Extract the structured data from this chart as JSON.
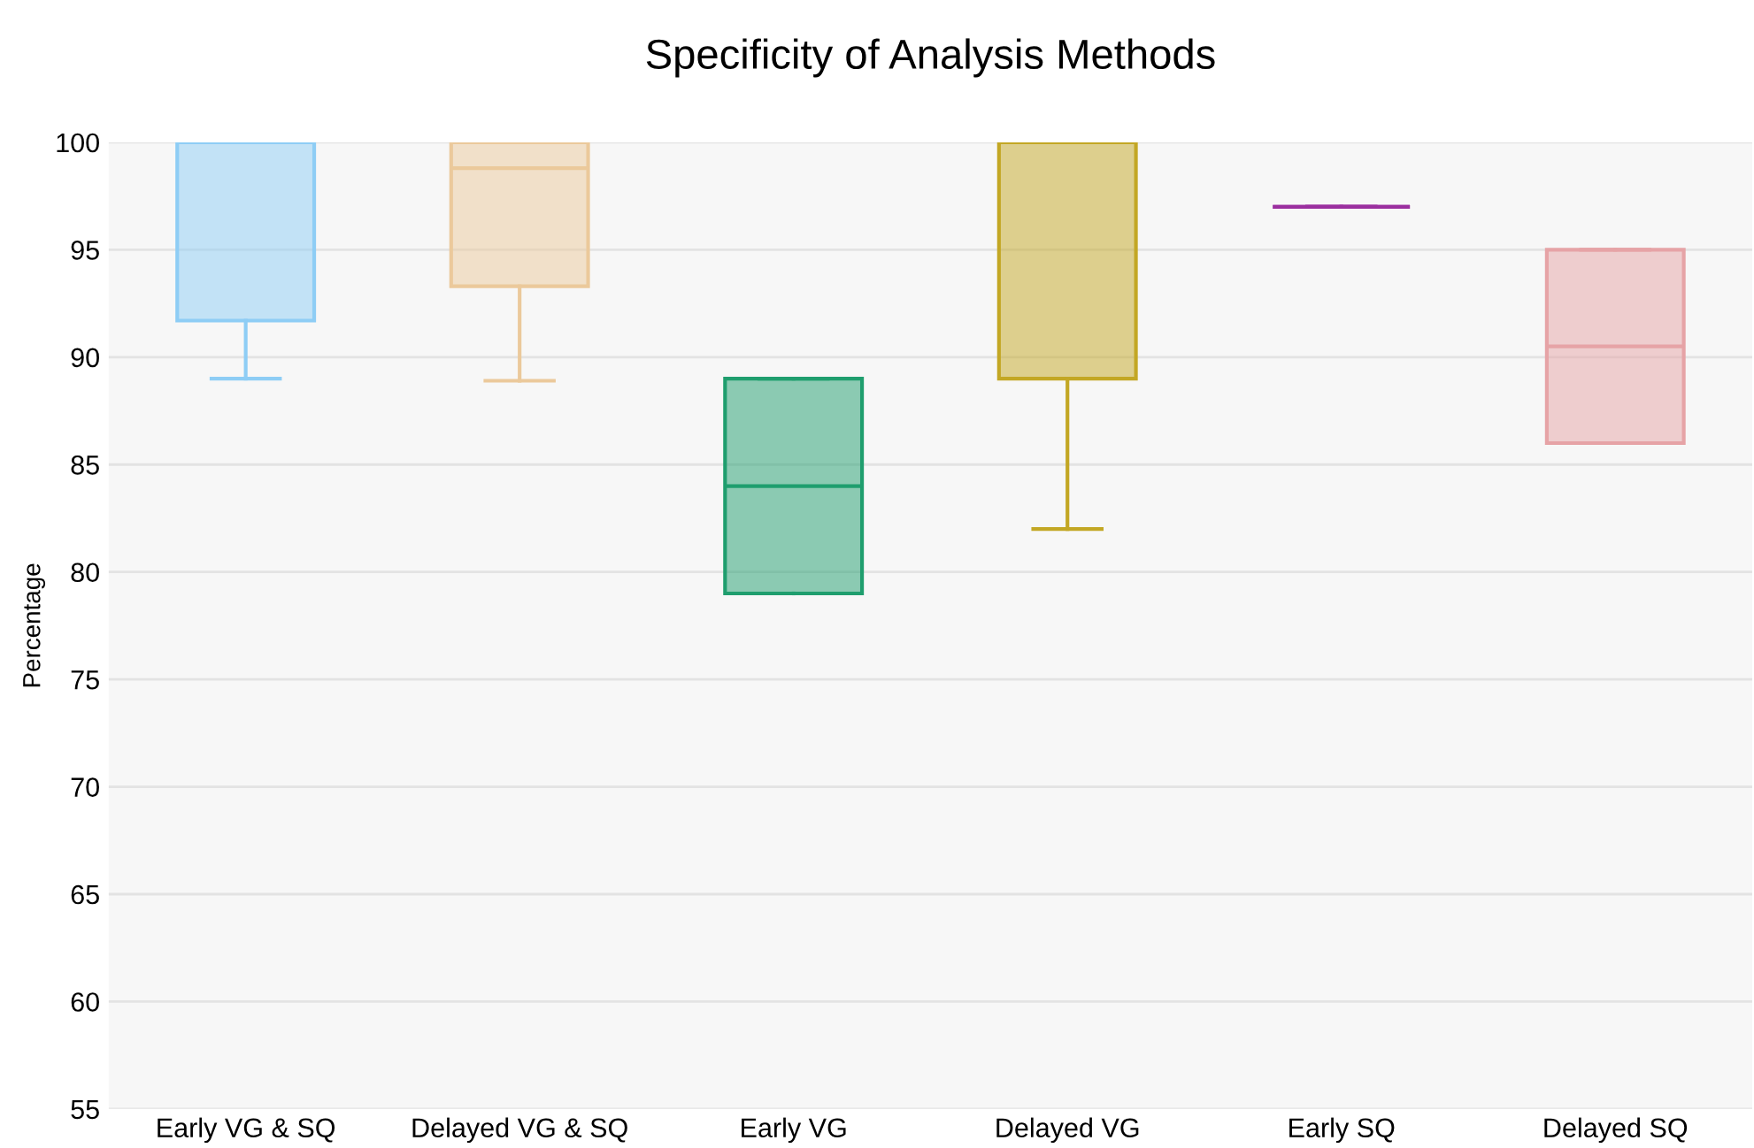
{
  "chart_data": {
    "type": "box",
    "title": "Specificity of Analysis Methods",
    "ylabel": "Percentage",
    "categories": [
      "Early VG & SQ",
      "Delayed VG & SQ",
      "Early VG",
      "Delayed VG",
      "Early SQ",
      "Delayed SQ"
    ],
    "boxes": [
      {
        "low": 89,
        "q1": 91.7,
        "median": 100,
        "q3": 100,
        "high": 100
      },
      {
        "low": 88.9,
        "q1": 93.3,
        "median": 98.8,
        "q3": 100,
        "high": 100
      },
      {
        "low": 79,
        "q1": 79,
        "median": 84,
        "q3": 89,
        "high": 89
      },
      {
        "low": 82,
        "q1": 89,
        "median": 100,
        "q3": 100,
        "high": 100
      },
      {
        "low": 97,
        "q1": 97,
        "median": 97,
        "q3": 97,
        "high": 97
      },
      {
        "low": 86,
        "q1": 86,
        "median": 90.5,
        "q3": 95,
        "high": 95
      }
    ],
    "colors": [
      "#8ecdf5",
      "#ebc99b",
      "#1f9e6e",
      "#c3a724",
      "#9b2f9f",
      "#e6a3a6"
    ],
    "ylim": [
      55,
      100
    ],
    "yticks": [
      55,
      60,
      65,
      70,
      75,
      80,
      85,
      90,
      95,
      100
    ],
    "grid": "y"
  }
}
